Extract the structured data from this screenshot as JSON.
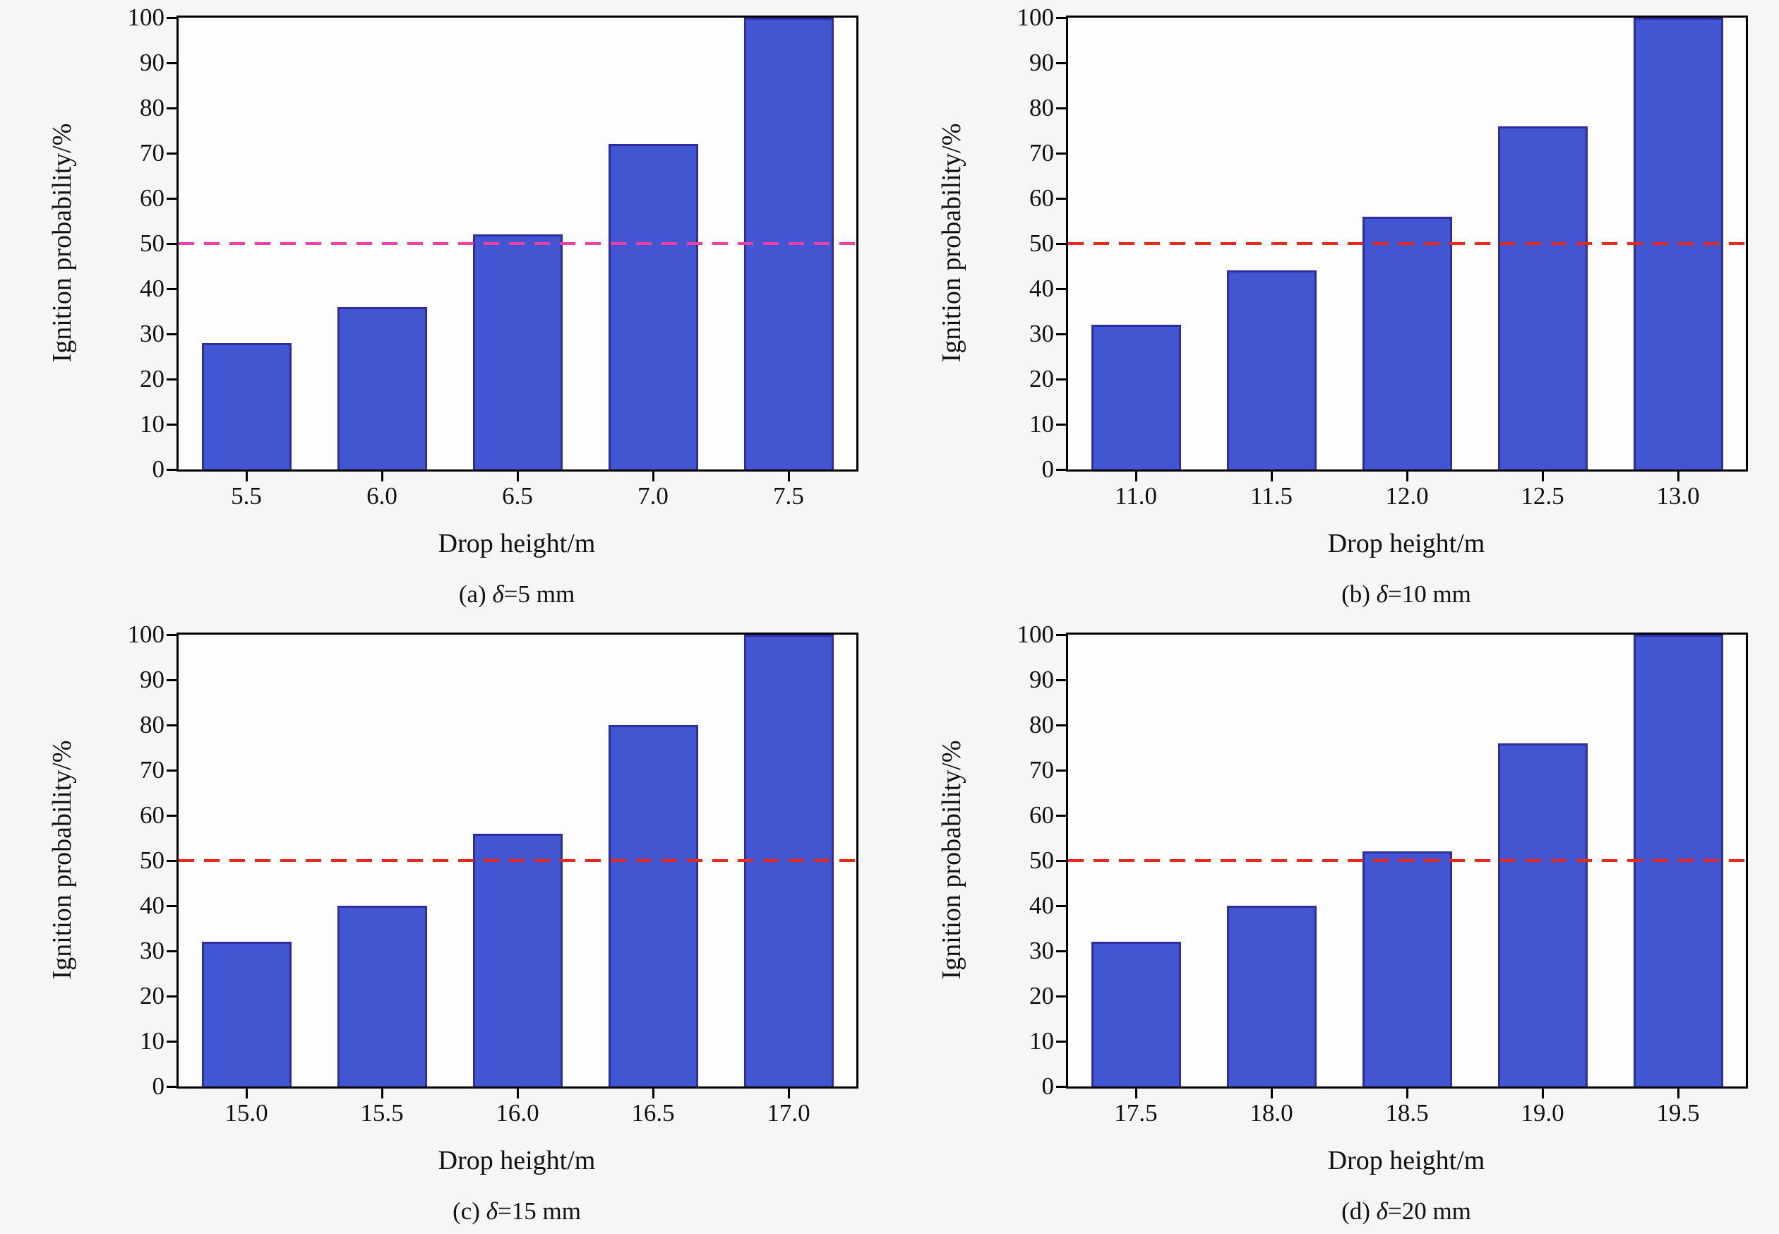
{
  "page": {
    "background": "#f6f6f6"
  },
  "axis": {
    "tick_color": "#000000",
    "frame_color": "#000000"
  },
  "chart_data": [
    {
      "id": "a",
      "type": "bar",
      "caption_prefix": "(a) ",
      "caption_symbol": "δ",
      "caption_suffix": "=5 mm",
      "xlabel": "Drop height/m",
      "ylabel": "Ignition probability/%",
      "categories": [
        "5.5",
        "6.0",
        "6.5",
        "7.0",
        "7.5"
      ],
      "values": [
        28,
        36,
        52,
        72,
        100
      ],
      "ylim": [
        0,
        100
      ],
      "ytick_step": 10,
      "yticks": [
        0,
        10,
        20,
        30,
        40,
        50,
        60,
        70,
        80,
        90,
        100
      ],
      "threshold": {
        "y": 50,
        "style": "dashed",
        "color": "#ee3fa8"
      },
      "bar_color": "#4356d2",
      "bar_edge_color": "#2e2e9e",
      "grid": false,
      "legend": null
    },
    {
      "id": "b",
      "type": "bar",
      "caption_prefix": "(b) ",
      "caption_symbol": "δ",
      "caption_suffix": "=10 mm",
      "xlabel": "Drop height/m",
      "ylabel": "Ignition probability/%",
      "categories": [
        "11.0",
        "11.5",
        "12.0",
        "12.5",
        "13.0"
      ],
      "values": [
        32,
        44,
        56,
        76,
        100
      ],
      "ylim": [
        0,
        100
      ],
      "ytick_step": 10,
      "yticks": [
        0,
        10,
        20,
        30,
        40,
        50,
        60,
        70,
        80,
        90,
        100
      ],
      "threshold": {
        "y": 50,
        "style": "dashed",
        "color": "#e8291c"
      },
      "bar_color": "#4356d2",
      "bar_edge_color": "#2e2e9e",
      "grid": false,
      "legend": null
    },
    {
      "id": "c",
      "type": "bar",
      "caption_prefix": "(c) ",
      "caption_symbol": "δ",
      "caption_suffix": "=15 mm",
      "xlabel": "Drop height/m",
      "ylabel": "Ignition probability/%",
      "categories": [
        "15.0",
        "15.5",
        "16.0",
        "16.5",
        "17.0"
      ],
      "values": [
        32,
        40,
        56,
        80,
        100
      ],
      "ylim": [
        0,
        100
      ],
      "ytick_step": 10,
      "yticks": [
        0,
        10,
        20,
        30,
        40,
        50,
        60,
        70,
        80,
        90,
        100
      ],
      "threshold": {
        "y": 50,
        "style": "dashed",
        "color": "#e8291c"
      },
      "bar_color": "#4356d2",
      "bar_edge_color": "#2e2e9e",
      "grid": false,
      "legend": null
    },
    {
      "id": "d",
      "type": "bar",
      "caption_prefix": "(d) ",
      "caption_symbol": "δ",
      "caption_suffix": "=20 mm",
      "xlabel": "Drop height/m",
      "ylabel": "Ignition probability/%",
      "categories": [
        "17.5",
        "18.0",
        "18.5",
        "19.0",
        "19.5"
      ],
      "values": [
        32,
        40,
        52,
        76,
        100
      ],
      "ylim": [
        0,
        100
      ],
      "ytick_step": 10,
      "yticks": [
        0,
        10,
        20,
        30,
        40,
        50,
        60,
        70,
        80,
        90,
        100
      ],
      "threshold": {
        "y": 50,
        "style": "dashed",
        "color": "#e8291c"
      },
      "bar_color": "#4356d2",
      "bar_edge_color": "#2e2e9e",
      "grid": false,
      "legend": null
    }
  ]
}
